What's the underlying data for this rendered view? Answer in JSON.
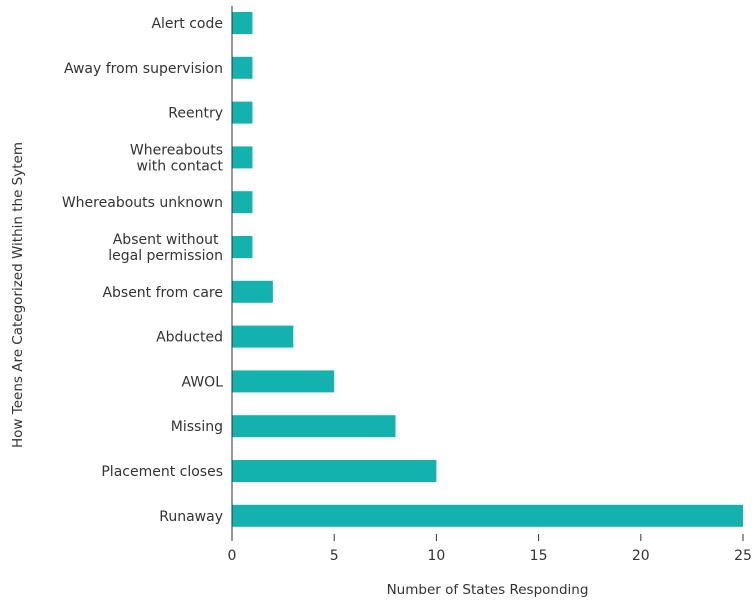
{
  "chart_data": {
    "type": "bar",
    "orientation": "horizontal",
    "categories": [
      "Alert code",
      "Away from supervision",
      "Reentry",
      "Whereabouts\nwith contact",
      "Whereabouts unknown",
      "Absent without \nlegal permission",
      "Absent from care",
      "Abducted",
      "AWOL",
      "Missing",
      "Placement closes",
      "Runaway"
    ],
    "values": [
      1,
      1,
      1,
      1,
      1,
      1,
      2,
      3,
      5,
      8,
      10,
      25
    ],
    "xlabel": "Number of States Responding",
    "ylabel": "How Teens Are Categorized Within the Sytem",
    "xlim": [
      0,
      25
    ],
    "xticks": [
      0,
      5,
      10,
      15,
      20,
      25
    ],
    "grid": false,
    "legend": "none",
    "bar_color": "#13b2af",
    "axis_color": "#333333",
    "text_color": "#333333"
  }
}
